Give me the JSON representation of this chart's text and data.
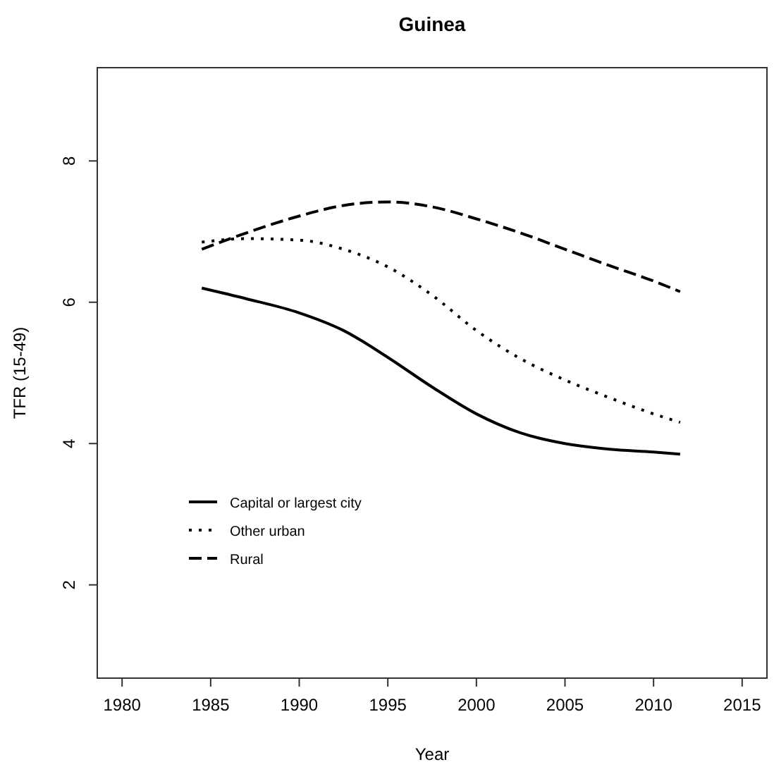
{
  "chart_data": {
    "type": "line",
    "title": "Guinea",
    "xlabel": "Year",
    "ylabel": "TFR (15-49)",
    "x": [
      1984.5,
      1987,
      1990,
      1992.5,
      1995,
      1997.5,
      2000,
      2002.5,
      2005,
      2007.5,
      2010,
      2011.5
    ],
    "series": [
      {
        "name": "Capital or largest city",
        "color": "#000000",
        "line_style": "solid",
        "values": [
          6.2,
          6.05,
          5.85,
          5.6,
          5.22,
          4.8,
          4.42,
          4.15,
          4.0,
          3.92,
          3.88,
          3.85
        ]
      },
      {
        "name": "Other urban",
        "color": "#000000",
        "line_style": "dotted",
        "values": [
          6.85,
          6.9,
          6.88,
          6.75,
          6.5,
          6.1,
          5.6,
          5.2,
          4.9,
          4.65,
          4.42,
          4.3
        ]
      },
      {
        "name": "Rural",
        "color": "#000000",
        "line_style": "dashed",
        "values": [
          6.75,
          6.98,
          7.22,
          7.37,
          7.42,
          7.35,
          7.18,
          6.98,
          6.75,
          6.52,
          6.3,
          6.15
        ]
      }
    ],
    "xlim": [
      1978.6,
      2016.4
    ],
    "xticks": [
      1980,
      1985,
      1990,
      1995,
      2000,
      2005,
      2010,
      2015
    ],
    "ylim": [
      0.68,
      9.32
    ],
    "yticks": [
      2,
      4,
      6,
      8
    ],
    "grid": false,
    "legend": "bottom left",
    "marker": "none"
  }
}
